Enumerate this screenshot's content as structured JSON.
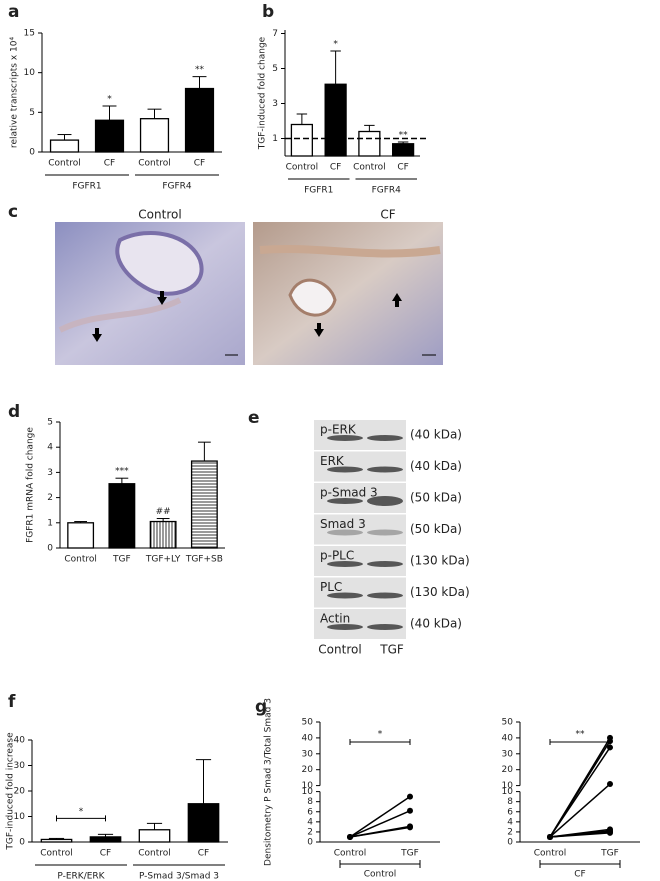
{
  "chart_data": [
    {
      "panel": "a",
      "type": "bar",
      "ylabel": "relative transcripts x 10⁴",
      "categories": [
        "Control",
        "CF",
        "Control",
        "CF"
      ],
      "groups": [
        "FGFR1",
        "FGFR4"
      ],
      "values": [
        1.5,
        4.0,
        4.2,
        8.0
      ],
      "errors": [
        0.7,
        1.8,
        1.2,
        1.5
      ],
      "fills": [
        "white",
        "black",
        "white",
        "black"
      ],
      "annotations": [
        null,
        "*",
        null,
        "**"
      ],
      "ylim": [
        0,
        15
      ],
      "yticks": [
        0,
        5,
        10,
        15
      ]
    },
    {
      "panel": "b",
      "type": "bar",
      "ylabel": "TGF-induced fold change",
      "categories": [
        "Control",
        "CF",
        "Control",
        "CF"
      ],
      "groups": [
        "FGFR1",
        "FGFR4"
      ],
      "values": [
        1.8,
        4.1,
        1.4,
        0.7
      ],
      "errors": [
        0.6,
        1.9,
        0.35,
        0.1
      ],
      "fills": [
        "white",
        "black",
        "white",
        "black"
      ],
      "annotations": [
        null,
        "*",
        null,
        "**"
      ],
      "reference_line": 1,
      "ylim": [
        0,
        7.2
      ],
      "yticks": [
        1,
        3,
        5,
        7
      ]
    },
    {
      "panel": "d",
      "type": "bar",
      "ylabel": "FGFR1 mRNA fold change",
      "categories": [
        "Control",
        "TGF",
        "TGF+LY",
        "TGF+SB"
      ],
      "values": [
        1.0,
        2.55,
        1.05,
        3.45
      ],
      "errors": [
        0.05,
        0.22,
        0.12,
        0.75
      ],
      "fills": [
        "white",
        "black",
        "vertical-stripes",
        "horizontal-stripes"
      ],
      "annotations": [
        null,
        "***",
        "##",
        null
      ],
      "ylim": [
        0,
        5
      ],
      "yticks": [
        0,
        1,
        2,
        3,
        4,
        5
      ]
    },
    {
      "panel": "f",
      "type": "bar",
      "ylabel": "TGF-induced fold increase",
      "categories": [
        "Control",
        "CF",
        "Control",
        "CF"
      ],
      "groups": [
        "P-ERK/ERK",
        "P-Smad 3/Smad 3"
      ],
      "values": [
        1.0,
        2.0,
        4.8,
        15.0
      ],
      "errors": [
        0.4,
        1.0,
        2.5,
        17.3
      ],
      "fills": [
        "white",
        "black",
        "white",
        "black"
      ],
      "annotations": [
        null,
        "*",
        null,
        null
      ],
      "annotation_style": "bracket",
      "ylim": [
        0,
        40
      ],
      "yticks": [
        0,
        10,
        20,
        30,
        40
      ]
    },
    {
      "panel": "g",
      "type": "line",
      "ylabel": "Densitometry P Smad 3/Total Smad 3",
      "categories": [
        "Control",
        "TGF"
      ],
      "group": "Control",
      "annotation": "*",
      "color": "#000000",
      "segments": [
        {
          "ylim": [
            0,
            10
          ],
          "yticks": [
            0,
            2,
            4,
            6,
            8,
            10
          ]
        },
        {
          "ylim": [
            10,
            50
          ],
          "yticks": [
            10,
            20,
            30,
            40,
            50
          ]
        }
      ],
      "series": [
        {
          "values": [
            1,
            9
          ]
        },
        {
          "values": [
            1,
            6.2
          ]
        },
        {
          "values": [
            1,
            3.1
          ]
        },
        {
          "values": [
            1,
            2.9
          ]
        }
      ]
    },
    {
      "type": "line",
      "categories": [
        "Control",
        "TGF"
      ],
      "group": "CF",
      "annotation": "**",
      "color": "#000000",
      "segments": [
        {
          "ylim": [
            0,
            10
          ],
          "yticks": [
            0,
            2,
            4,
            6,
            8,
            10
          ]
        },
        {
          "ylim": [
            10,
            50
          ],
          "yticks": [
            10,
            20,
            30,
            40,
            50
          ]
        }
      ],
      "series": [
        {
          "values": [
            1,
            40
          ]
        },
        {
          "values": [
            1,
            38
          ]
        },
        {
          "values": [
            1,
            34
          ]
        },
        {
          "values": [
            1,
            11
          ]
        },
        {
          "values": [
            1,
            2.5
          ]
        },
        {
          "values": [
            1,
            2.2
          ]
        },
        {
          "values": [
            1,
            2.0
          ]
        },
        {
          "values": [
            1,
            1.8
          ]
        }
      ]
    }
  ],
  "micrographs": {
    "panel": "c",
    "labels": [
      "Control",
      "CF"
    ]
  },
  "western_blot": {
    "panel": "e",
    "bands": [
      {
        "name": "p-ERK",
        "size": "(40 kDa)"
      },
      {
        "name": "ERK",
        "size": "(40 kDa)"
      },
      {
        "name": "p-Smad 3",
        "size": "(50 kDa)"
      },
      {
        "name": "Smad 3",
        "size": "(50 kDa)"
      },
      {
        "name": "p-PLC",
        "size": "(130 kDa)"
      },
      {
        "name": "PLC",
        "size": "(130 kDa)"
      },
      {
        "name": "Actin",
        "size": "(40 kDa)"
      }
    ],
    "lanes": [
      "Control",
      "TGF"
    ]
  }
}
